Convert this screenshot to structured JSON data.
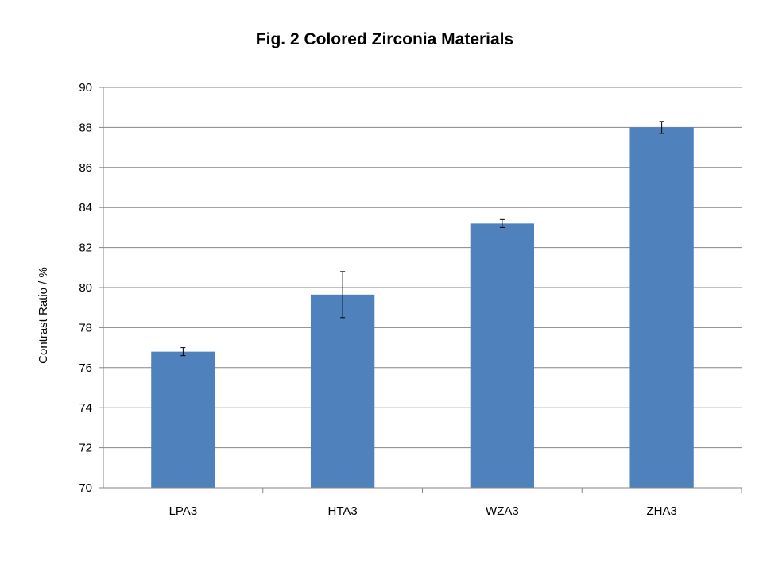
{
  "chart_data": {
    "type": "bar",
    "title": "Fig. 2 Colored Zirconia Materials",
    "xlabel": "",
    "ylabel": "Contrast Ratio / %",
    "ylim": [
      70,
      90
    ],
    "yticks": [
      70,
      72,
      74,
      76,
      78,
      80,
      82,
      84,
      86,
      88,
      90
    ],
    "grid": true,
    "legend": "none",
    "categories": [
      "LPA3",
      "HTA3",
      "WZA3",
      "ZHA3"
    ],
    "values": [
      76.8,
      79.65,
      83.2,
      88.0
    ],
    "error": [
      0.2,
      1.15,
      0.2,
      0.3
    ],
    "bar_color": "#4F81BD",
    "grid_color": "#868686"
  }
}
